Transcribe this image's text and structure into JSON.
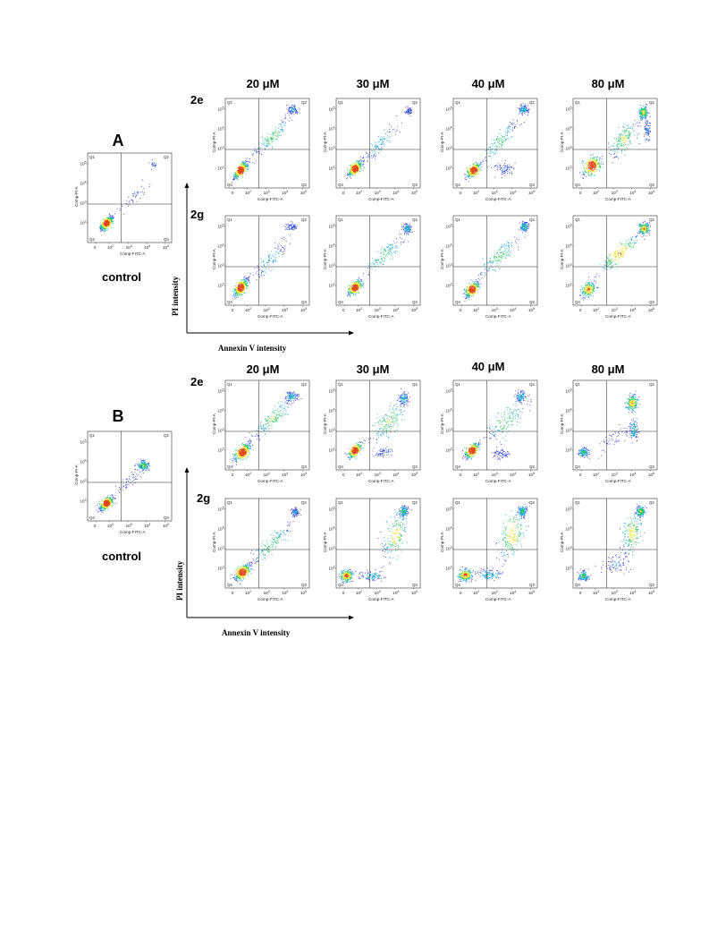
{
  "panels": {
    "A": {
      "letter": "A",
      "control_label": "control",
      "row_labels": [
        "2e",
        "2g"
      ],
      "concentrations": [
        "20 μM",
        "30 μM",
        "40 μM",
        "80 μM"
      ]
    },
    "B": {
      "letter": "B",
      "control_label": "control",
      "row_labels": [
        "2e",
        "2g"
      ],
      "concentrations": [
        "20 μM",
        "30 μM",
        "40 μM",
        "80 μM"
      ]
    }
  },
  "axis_titles": {
    "y": "PI intensity",
    "x": "Annexin V intensity"
  },
  "plot_labels": {
    "x_axis": "Comp-FITC-A",
    "y_axis": "Comp-PI-A",
    "quadrants": [
      "Q1",
      "Q2",
      "Q3",
      "Q4"
    ],
    "x_ticks": [
      "0",
      "10",
      "10",
      "10",
      "10"
    ],
    "x_tick_exps": [
      "",
      "2",
      "3",
      "4",
      "5"
    ],
    "y_ticks": [
      "10",
      "10",
      "10",
      "10"
    ],
    "y_tick_exps": [
      "2",
      "3",
      "4",
      "5"
    ]
  },
  "colors": {
    "sparse": "#2b3fd6",
    "medium": "#17a3d8",
    "dense": "#2bc46a",
    "denser": "#e8e23a",
    "core": "#e0481c"
  }
}
